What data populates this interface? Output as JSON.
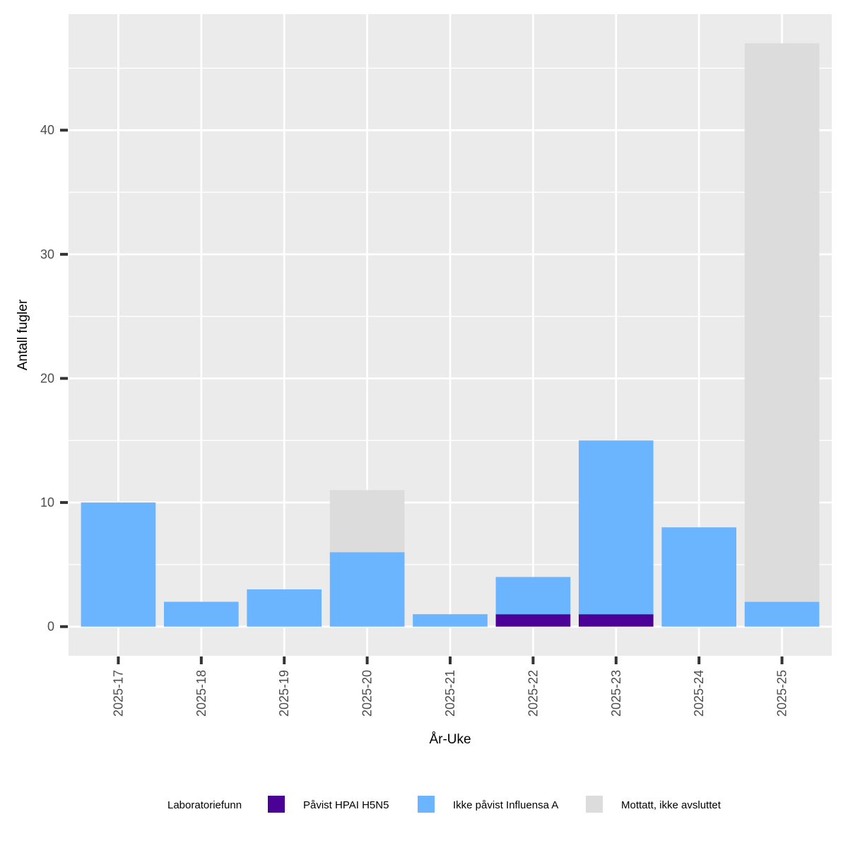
{
  "chart_data": {
    "type": "bar",
    "stacked": true,
    "categories": [
      "2025-17",
      "2025-18",
      "2025-19",
      "2025-20",
      "2025-21",
      "2025-22",
      "2025-23",
      "2025-24",
      "2025-25"
    ],
    "series": [
      {
        "name": "Påvist HPAI H5N5",
        "color": "#4B0096",
        "values": [
          0,
          0,
          0,
          0,
          0,
          1,
          1,
          0,
          0
        ]
      },
      {
        "name": "Ikke påvist Influensa A",
        "color": "#6BB4FF",
        "values": [
          10,
          2,
          3,
          6,
          1,
          3,
          14,
          8,
          2
        ]
      },
      {
        "name": "Mottatt, ikke avsluttet",
        "color": "#DCDCDC",
        "values": [
          0,
          0,
          0,
          5,
          0,
          0,
          0,
          0,
          45
        ]
      }
    ],
    "xlabel": "År-Uke",
    "ylabel": "Antall fugler",
    "ylim": [
      -2.35,
      49.35
    ],
    "yticks": [
      0,
      10,
      20,
      30,
      40
    ],
    "grid": true,
    "legend": {
      "title": "Laboratoriefunn",
      "position": "bottom"
    },
    "panel_background": "#EBEBEB"
  }
}
